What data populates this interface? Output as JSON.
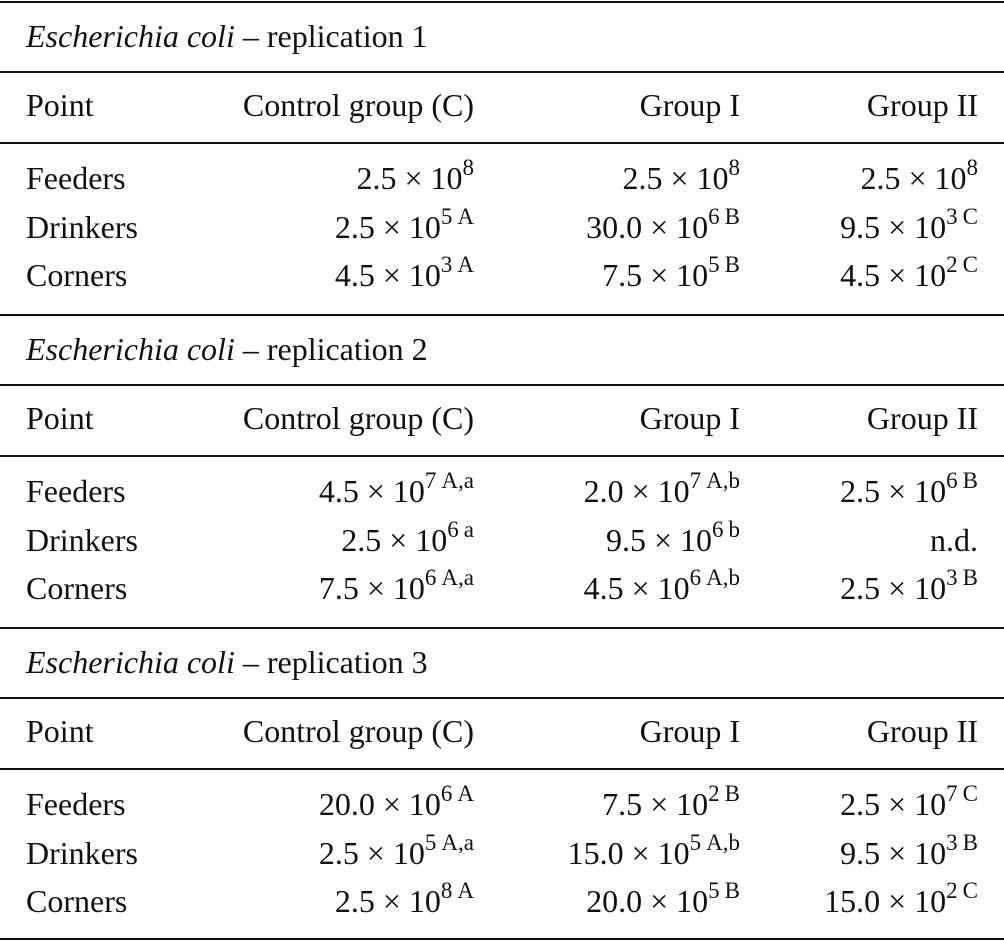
{
  "sections": [
    {
      "title": {
        "organism": "Escherichia coli",
        "label": "– replication 1"
      },
      "columns": [
        "Point",
        "Control group (C)",
        "Group I",
        "Group II"
      ],
      "rows": [
        {
          "point": "Feeders",
          "cells": [
            {
              "text": "2.5 × 10",
              "exponent": "8"
            },
            {
              "text": "2.5 × 10",
              "exponent": "8"
            },
            {
              "text": "2.5 × 10",
              "exponent": "8"
            }
          ]
        },
        {
          "point": "Drinkers",
          "cells": [
            {
              "text": "2.5 × 10",
              "exponent": "5",
              "note": "A"
            },
            {
              "text": "30.0 × 10",
              "exponent": "6",
              "note": "B"
            },
            {
              "text": "9.5 × 10",
              "exponent": "3",
              "note": "C"
            }
          ]
        },
        {
          "point": "Corners",
          "cells": [
            {
              "text": "4.5 × 10",
              "exponent": "3",
              "note": "A"
            },
            {
              "text": "7.5 × 10",
              "exponent": "5",
              "note": "B"
            },
            {
              "text": "4.5 × 10",
              "exponent": "2",
              "note": "C"
            }
          ]
        }
      ]
    },
    {
      "title": {
        "organism": "Escherichia coli",
        "label": "– replication 2"
      },
      "columns": [
        "Point",
        "Control group (C)",
        "Group I",
        "Group II"
      ],
      "rows": [
        {
          "point": "Feeders",
          "cells": [
            {
              "text": "4.5 × 10",
              "exponent": "7",
              "note": "A,a"
            },
            {
              "text": "2.0 × 10",
              "exponent": "7",
              "note": "A,b"
            },
            {
              "text": "2.5 × 10",
              "exponent": "6",
              "note": "B"
            }
          ]
        },
        {
          "point": "Drinkers",
          "cells": [
            {
              "text": "2.5 × 10",
              "exponent": "6",
              "note": "a"
            },
            {
              "text": "9.5 × 10",
              "exponent": "6",
              "note": "b"
            },
            {
              "text": "n.d."
            }
          ]
        },
        {
          "point": "Corners",
          "cells": [
            {
              "text": "7.5 × 10",
              "exponent": "6",
              "note": "A,a"
            },
            {
              "text": "4.5 × 10",
              "exponent": "6",
              "note": "A,b"
            },
            {
              "text": "2.5 × 10",
              "exponent": "3",
              "note": "B"
            }
          ]
        }
      ]
    },
    {
      "title": {
        "organism": "Escherichia coli",
        "label": "– replication 3"
      },
      "columns": [
        "Point",
        "Control group (C)",
        "Group I",
        "Group II"
      ],
      "rows": [
        {
          "point": "Feeders",
          "cells": [
            {
              "text": "20.0 × 10",
              "exponent": "6",
              "note": "A"
            },
            {
              "text": "7.5 × 10",
              "exponent": "2",
              "note": "B"
            },
            {
              "text": "2.5 × 10",
              "exponent": "7",
              "note": "C"
            }
          ]
        },
        {
          "point": "Drinkers",
          "cells": [
            {
              "text": "2.5 × 10",
              "exponent": "5",
              "note": "A,a"
            },
            {
              "text": "15.0 × 10",
              "exponent": "5",
              "note": "A,b"
            },
            {
              "text": "9.5 × 10",
              "exponent": "3",
              "note": "B"
            }
          ]
        },
        {
          "point": "Corners",
          "cells": [
            {
              "text": "2.5 × 10",
              "exponent": "8",
              "note": "A"
            },
            {
              "text": "20.0 × 10",
              "exponent": "5",
              "note": "B"
            },
            {
              "text": "15.0 × 10",
              "exponent": "2",
              "note": "C"
            }
          ]
        }
      ]
    }
  ]
}
